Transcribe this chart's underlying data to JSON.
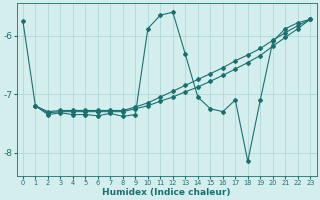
{
  "xlabel": "Humidex (Indice chaleur)",
  "background_color": "#d4eeee",
  "grid_color": "#aad4d4",
  "line_color": "#1a7070",
  "xlim": [
    -0.5,
    23.5
  ],
  "ylim": [
    -8.4,
    -5.45
  ],
  "yticks": [
    -8,
    -7,
    -6
  ],
  "xticks": [
    0,
    1,
    2,
    3,
    4,
    5,
    6,
    7,
    8,
    9,
    10,
    11,
    12,
    13,
    14,
    15,
    16,
    17,
    18,
    19,
    20,
    21,
    22,
    23
  ],
  "curve1_x": [
    0,
    1,
    2,
    3,
    4,
    5,
    6,
    7,
    8,
    9,
    10,
    11,
    12,
    13,
    14,
    15,
    16,
    17,
    18,
    19,
    20,
    21,
    22,
    23
  ],
  "curve1_y": [
    -5.75,
    -7.2,
    -7.35,
    -7.32,
    -7.35,
    -7.35,
    -7.37,
    -7.33,
    -7.38,
    -7.35,
    -5.88,
    -5.65,
    -5.6,
    -6.32,
    -7.05,
    -7.25,
    -7.3,
    -7.1,
    -8.15,
    -7.1,
    -6.1,
    -5.88,
    -5.78,
    -5.72
  ],
  "curve2_x": [
    1,
    2,
    3,
    4,
    5,
    6,
    7,
    8,
    9,
    10,
    11,
    12,
    13,
    14,
    15,
    16,
    17,
    18,
    19,
    20,
    21,
    22,
    23
  ],
  "curve2_y": [
    -7.2,
    -7.3,
    -7.28,
    -7.28,
    -7.28,
    -7.28,
    -7.28,
    -7.28,
    -7.22,
    -7.15,
    -7.05,
    -6.95,
    -6.85,
    -6.75,
    -6.65,
    -6.55,
    -6.43,
    -6.33,
    -6.22,
    -6.08,
    -5.95,
    -5.83,
    -5.72
  ],
  "curve3_x": [
    1,
    2,
    3,
    4,
    5,
    6,
    7,
    8,
    9,
    10,
    11,
    12,
    13,
    14,
    15,
    16,
    17,
    18,
    19,
    20,
    21,
    22,
    23
  ],
  "curve3_y": [
    -7.2,
    -7.32,
    -7.3,
    -7.3,
    -7.3,
    -7.3,
    -7.3,
    -7.3,
    -7.25,
    -7.2,
    -7.12,
    -7.05,
    -6.96,
    -6.88,
    -6.78,
    -6.68,
    -6.57,
    -6.46,
    -6.34,
    -6.18,
    -6.03,
    -5.88,
    -5.72
  ]
}
